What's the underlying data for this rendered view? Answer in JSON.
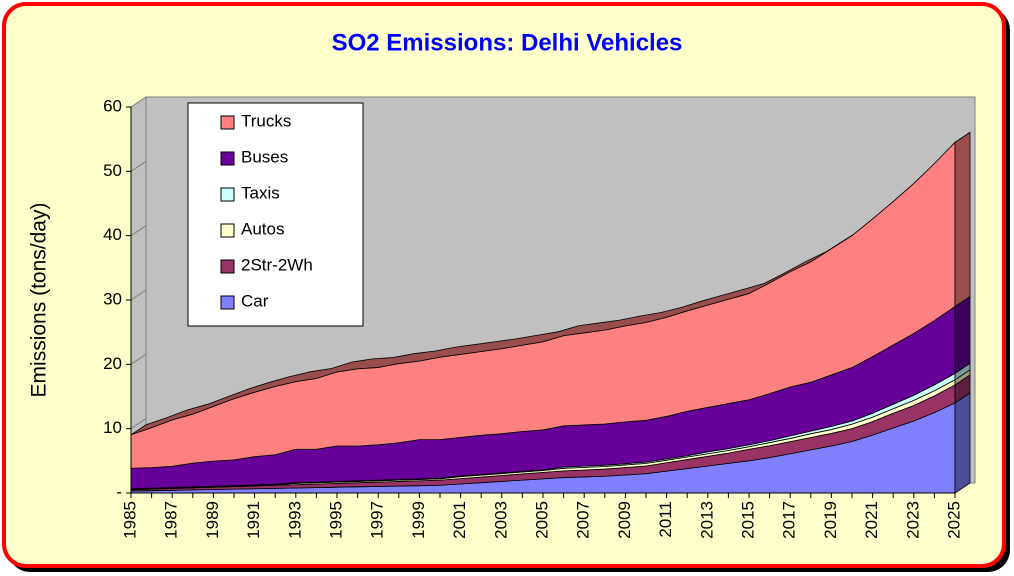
{
  "chart_data": {
    "type": "stacked_area_3d",
    "title": "SO2 Emissions: Delhi Vehicles",
    "y_label": "Emissions (tons/day)",
    "categories": [
      "1985",
      null,
      "1987",
      null,
      "1989",
      null,
      "1991",
      null,
      "1993",
      null,
      "1995",
      null,
      "1997",
      null,
      "1999",
      null,
      "2001",
      null,
      "2003",
      null,
      "2005",
      null,
      "2007",
      null,
      "2009",
      null,
      "2011",
      null,
      "2013",
      null,
      "2015",
      null,
      "2017",
      null,
      "2019",
      null,
      "2021",
      null,
      "2023",
      null,
      "2025"
    ],
    "series": [
      {
        "name": "Car",
        "color": "#8080ff",
        "values": [
          0.3,
          0.36,
          0.42,
          0.48,
          0.54,
          0.6,
          0.66,
          0.72,
          0.78,
          0.84,
          0.9,
          0.96,
          1.02,
          1.08,
          1.14,
          1.2,
          1.4,
          1.6,
          1.8,
          2.0,
          2.2,
          2.4,
          2.5,
          2.6,
          2.8,
          3.0,
          3.4,
          3.8,
          4.2,
          4.6,
          5.0,
          5.5,
          6.1,
          6.7,
          7.3,
          8.0,
          9.0,
          10.1,
          11.2,
          12.5,
          14.0
        ]
      },
      {
        "name": "2Str-2Wh",
        "color": "#993366",
        "values": [
          0.2,
          0.24,
          0.28,
          0.32,
          0.36,
          0.4,
          0.44,
          0.48,
          0.52,
          0.56,
          0.6,
          0.64,
          0.68,
          0.72,
          0.76,
          0.8,
          0.84,
          0.88,
          0.92,
          0.96,
          1.0,
          1.04,
          1.08,
          1.12,
          1.16,
          1.2,
          1.3,
          1.4,
          1.5,
          1.6,
          1.8,
          1.84,
          1.88,
          1.92,
          1.96,
          2.0,
          2.1,
          2.3,
          2.4,
          2.6,
          2.8
        ]
      },
      {
        "name": "Autos",
        "color": "#ffffcc",
        "values": [
          0.1,
          0.1,
          0.1,
          0.1,
          0.1,
          0.1,
          0.1,
          0.1,
          0.2,
          0.2,
          0.2,
          0.2,
          0.2,
          0.2,
          0.2,
          0.2,
          0.3,
          0.3,
          0.3,
          0.3,
          0.3,
          0.4,
          0.4,
          0.4,
          0.4,
          0.4,
          0.4,
          0.4,
          0.4,
          0.4,
          0.4,
          0.5,
          0.5,
          0.6,
          0.6,
          0.7,
          0.7,
          0.7,
          0.8,
          0.8,
          0.8
        ]
      },
      {
        "name": "Taxis",
        "color": "#ccffff",
        "values": [
          0.05,
          0.05,
          0.05,
          0.05,
          0.05,
          0.05,
          0.05,
          0.05,
          0.1,
          0.1,
          0.1,
          0.1,
          0.1,
          0.1,
          0.1,
          0.1,
          0.1,
          0.1,
          0.1,
          0.1,
          0.1,
          0.2,
          0.2,
          0.2,
          0.2,
          0.2,
          0.2,
          0.2,
          0.3,
          0.3,
          0.3,
          0.3,
          0.4,
          0.4,
          0.5,
          0.5,
          0.6,
          0.7,
          0.8,
          0.9,
          1.0
        ]
      },
      {
        "name": "Buses",
        "color": "#660099",
        "values": [
          3.2,
          3.2,
          3.3,
          3.7,
          3.9,
          4.0,
          4.4,
          4.6,
          5.2,
          5.1,
          5.5,
          5.4,
          5.5,
          5.7,
          6.1,
          6.0,
          6.0,
          6.1,
          6.1,
          6.2,
          6.2,
          6.4,
          6.4,
          6.4,
          6.5,
          6.5,
          6.6,
          6.9,
          6.9,
          7.0,
          7.0,
          7.3,
          7.6,
          7.6,
          8.0,
          8.3,
          8.8,
          9.2,
          9.6,
          10.0,
          10.4
        ]
      },
      {
        "name": "Trucks",
        "color": "#ff8080",
        "values": [
          5.2,
          6.2,
          7.2,
          7.6,
          8.5,
          9.5,
          10.0,
          10.6,
          10.5,
          11.0,
          11.5,
          12.0,
          12.0,
          12.3,
          12.2,
          12.8,
          12.9,
          13.0,
          13.2,
          13.4,
          13.7,
          14.0,
          14.3,
          14.6,
          14.9,
          15.2,
          15.4,
          15.6,
          15.9,
          16.2,
          16.5,
          17.2,
          17.9,
          18.7,
          19.6,
          20.5,
          21.4,
          22.3,
          23.3,
          24.4,
          25.5
        ]
      }
    ],
    "ylim": [
      0,
      60
    ],
    "yticks": [
      {
        "value": 0,
        "label": "-"
      },
      10,
      20,
      30,
      40,
      50,
      60
    ]
  }
}
